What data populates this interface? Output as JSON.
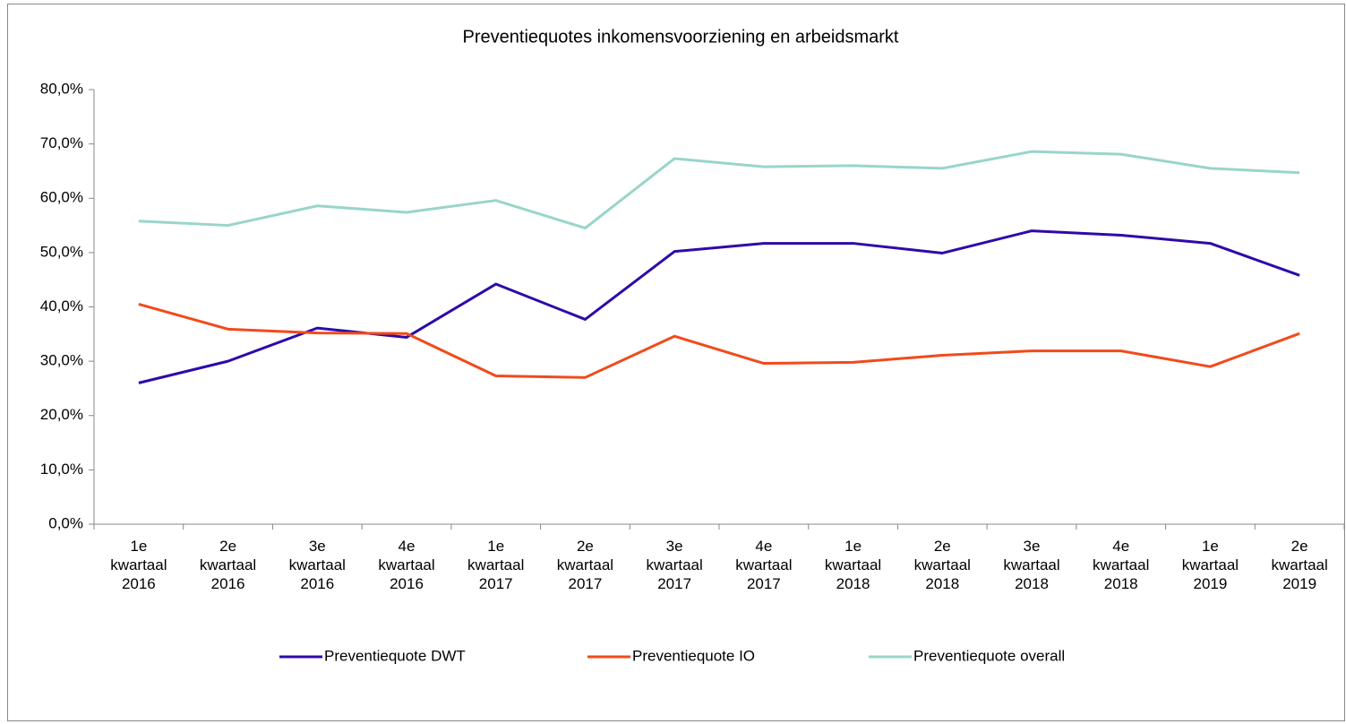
{
  "chart_data": {
    "type": "line",
    "title": "Preventiequotes inkomensvoorziening en arbeidsmarkt",
    "categories": [
      "1e kwartaal 2016",
      "2e kwartaal 2016",
      "3e kwartaal 2016",
      "4e kwartaal 2016",
      "1e kwartaal 2017",
      "2e kwartaal 2017",
      "3e kwartaal 2017",
      "4e kwartaal 2017",
      "1e kwartaal 2018",
      "2e kwartaal 2018",
      "3e kwartaal 2018",
      "4e kwartaal 2018",
      "1e kwartaal 2019",
      "2e kwartaal 2019"
    ],
    "series": [
      {
        "name": "Preventiequote DWT",
        "color": "#2e0aa8",
        "values": [
          26.0,
          30.0,
          36.1,
          34.4,
          44.2,
          37.7,
          50.2,
          51.7,
          51.7,
          49.9,
          54.0,
          53.2,
          51.7,
          45.8
        ]
      },
      {
        "name": "Preventiequote IO",
        "color": "#f24a1b",
        "values": [
          40.5,
          35.9,
          35.2,
          35.1,
          27.3,
          27.0,
          34.6,
          29.6,
          29.8,
          31.1,
          31.9,
          31.9,
          29.0,
          35.1
        ]
      },
      {
        "name": "Preventiequote overall",
        "color": "#99d5c9",
        "values": [
          55.8,
          55.0,
          58.6,
          57.4,
          59.6,
          54.5,
          67.3,
          65.8,
          66.0,
          65.5,
          68.6,
          68.1,
          65.5,
          64.7
        ]
      }
    ],
    "ylim": [
      0,
      80
    ],
    "yticks": [
      {
        "value": 0,
        "label": "0,0%"
      },
      {
        "value": 10,
        "label": "10,0%"
      },
      {
        "value": 20,
        "label": "20,0%"
      },
      {
        "value": 30,
        "label": "30,0%"
      },
      {
        "value": 40,
        "label": "40,0%"
      },
      {
        "value": 50,
        "label": "50,0%"
      },
      {
        "value": 60,
        "label": "60,0%"
      },
      {
        "value": 70,
        "label": "70,0%"
      },
      {
        "value": 80,
        "label": "80,0%"
      }
    ],
    "legend": "bottom"
  }
}
